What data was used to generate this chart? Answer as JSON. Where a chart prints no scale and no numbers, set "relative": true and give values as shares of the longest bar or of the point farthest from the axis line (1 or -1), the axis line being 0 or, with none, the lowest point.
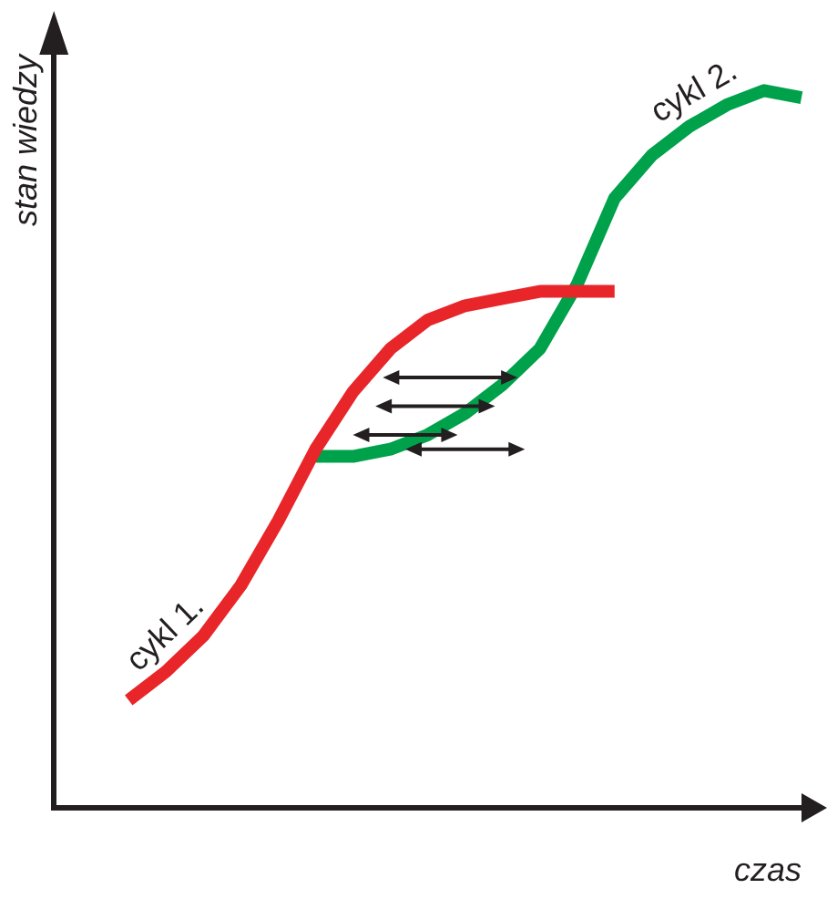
{
  "chart_data": {
    "type": "line",
    "relative": true,
    "xlabel": "czas",
    "ylabel": "stan wiedzy",
    "grid": false,
    "legend": false,
    "marker": "none",
    "line_style": "solid",
    "categories": [
      null,
      null,
      null,
      null,
      null,
      null,
      null,
      null,
      null,
      null,
      null,
      null,
      null,
      null,
      null,
      null,
      null,
      null,
      null,
      null,
      null
    ],
    "series": [
      {
        "name": "cykl 1.",
        "color": "#e8262a",
        "values": [
          null,
          null,
          0.15,
          0.19,
          0.24,
          0.31,
          0.4,
          0.5,
          0.58,
          0.64,
          0.68,
          0.7,
          0.71,
          0.72,
          0.72,
          0.72,
          null,
          null,
          null,
          null,
          null
        ]
      },
      {
        "name": "cykl 2.",
        "color": "#00a14b",
        "values": [
          null,
          null,
          null,
          null,
          null,
          null,
          null,
          0.49,
          0.49,
          0.5,
          0.52,
          0.55,
          0.59,
          0.64,
          0.73,
          0.85,
          0.91,
          0.95,
          0.98,
          1,
          0.99
        ]
      }
    ]
  }
}
